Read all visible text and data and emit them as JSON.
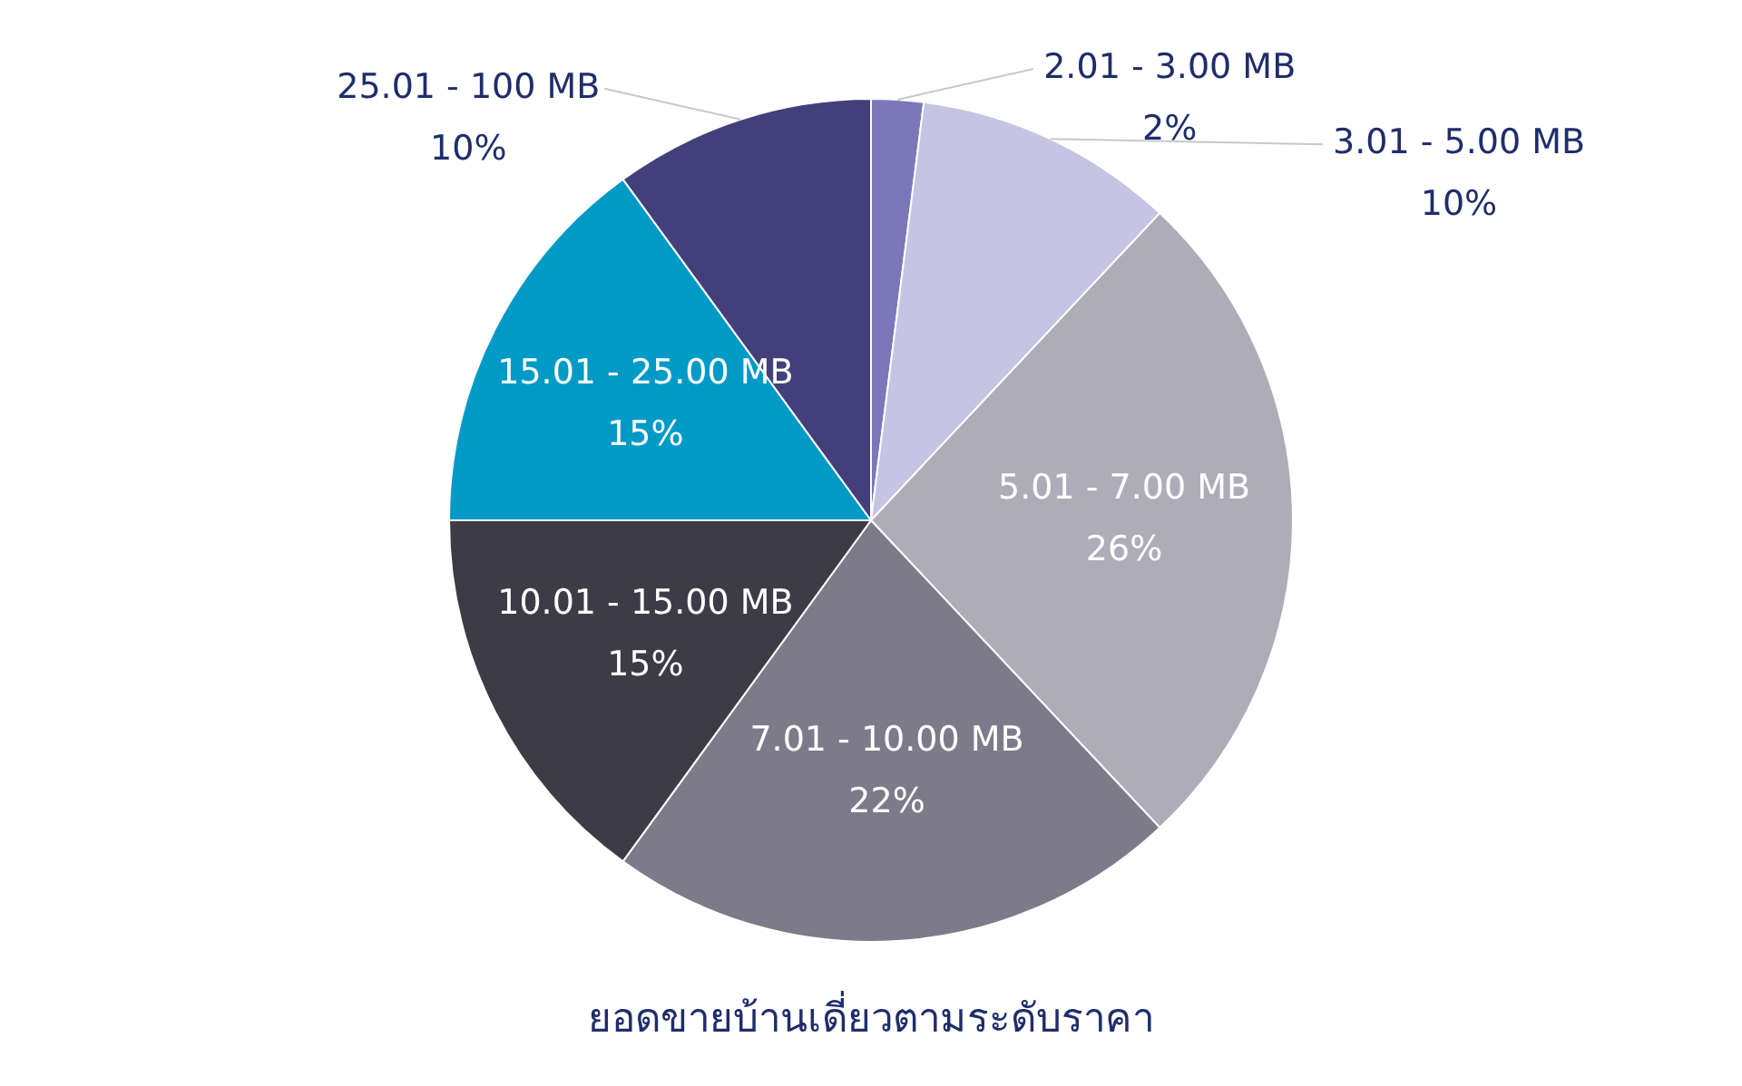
{
  "chart_data": {
    "type": "pie",
    "title": "ยอดขายบ้านเดี่ยวตามระดับราคา",
    "categories": [
      "2.01 - 3.00 MB",
      "3.01 - 5.00 MB",
      "5.01 - 7.00 MB",
      "7.01 - 10.00 MB",
      "10.01 - 15.00 MB",
      "15.01 - 25.00 MB",
      "25.01 - 100 MB"
    ],
    "values": [
      2,
      10,
      26,
      22,
      15,
      15,
      10
    ],
    "value_labels": [
      "2%",
      "10%",
      "26%",
      "22%",
      "15%",
      "15%",
      "10%"
    ],
    "colors": [
      "#7a78b8",
      "#c5c4e3",
      "#adacb8",
      "#7d7a89",
      "#3d3b45",
      "#009ac7",
      "#433f7a"
    ],
    "legend": false
  }
}
